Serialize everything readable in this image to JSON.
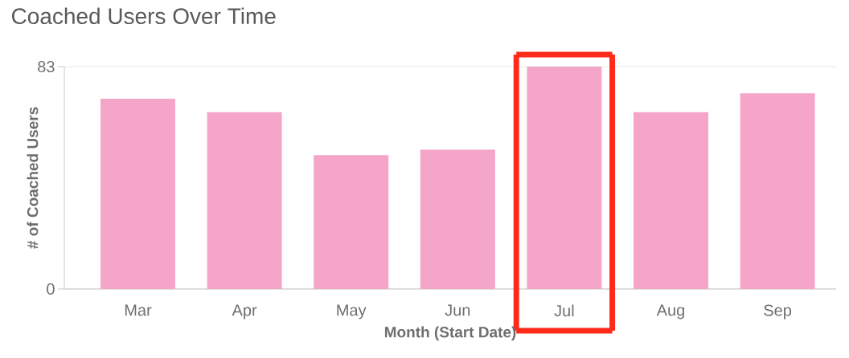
{
  "chart_data": {
    "type": "bar",
    "title": "Coached Users Over Time",
    "xlabel": "Month (Start Date)",
    "ylabel": "# of Coached Users",
    "categories": [
      "Mar",
      "Apr",
      "May",
      "Jun",
      "Jul",
      "Aug",
      "Sep"
    ],
    "values": [
      71,
      66,
      50,
      52,
      83,
      66,
      73
    ],
    "color": "#f5a5c8",
    "ylim": [
      0,
      83
    ],
    "yticks": [
      0,
      83
    ],
    "grid": "y"
  }
}
